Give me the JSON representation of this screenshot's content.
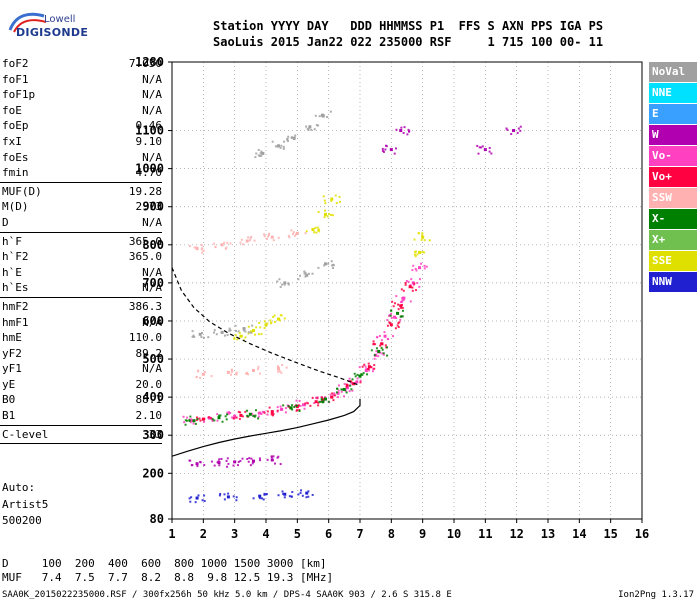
{
  "logo": {
    "word1": "Lowell",
    "word2": "DIGISONDE"
  },
  "header": {
    "line1": "Station YYYY DAY   DDD HHMMSS P1  FFS S AXN PPS IGA PS",
    "line2": "SaoLuis 2015 Jan22 022 235000 RSF     1 715 100 00- 11"
  },
  "params": [
    {
      "label": "foF2",
      "value": "7.050"
    },
    {
      "label": "foF1",
      "value": "N/A"
    },
    {
      "label": "foF1p",
      "value": "N/A"
    },
    {
      "label": "foE",
      "value": "N/A"
    },
    {
      "label": "foEp",
      "value": "0.46"
    },
    {
      "label": "fxI",
      "value": "9.10"
    },
    {
      "label": "foEs",
      "value": "N/A"
    },
    {
      "label": "fmin",
      "value": "4.70"
    },
    {
      "sep": true
    },
    {
      "label": "MUF(D)",
      "value": "19.28"
    },
    {
      "label": "M(D)",
      "value": "2.73"
    },
    {
      "label": "D",
      "value": "N/A"
    },
    {
      "sep": true
    },
    {
      "label": "h`F",
      "value": "365.0"
    },
    {
      "label": "h`F2",
      "value": "365.0"
    },
    {
      "label": "h`E",
      "value": "N/A"
    },
    {
      "label": "h`Es",
      "value": "N/A"
    },
    {
      "sep": true
    },
    {
      "label": "hmF2",
      "value": "386.3"
    },
    {
      "label": "hmF1",
      "value": "N/A"
    },
    {
      "label": "hmE",
      "value": "110.0"
    },
    {
      "label": "yF2",
      "value": "89.2"
    },
    {
      "label": "yF1",
      "value": "N/A"
    },
    {
      "label": "yE",
      "value": "20.0"
    },
    {
      "label": "B0",
      "value": "88.1"
    },
    {
      "label": "B1",
      "value": "2.10"
    },
    {
      "sep": true
    },
    {
      "label": "C-level",
      "value": "33"
    },
    {
      "sep": true
    }
  ],
  "artist": {
    "line1": "Auto:",
    "line2": "Artist5",
    "line3": "500200"
  },
  "legend": [
    {
      "label": "NoVal",
      "color": "#a0a0a0"
    },
    {
      "label": "NNE",
      "color": "#00e0ff"
    },
    {
      "label": "E",
      "color": "#3aa0ff"
    },
    {
      "label": "W",
      "color": "#b000b0"
    },
    {
      "label": "Vo-",
      "color": "#ff40c0"
    },
    {
      "label": "Vo+",
      "color": "#ff0040"
    },
    {
      "label": "SSW",
      "color": "#ffb0b0"
    },
    {
      "label": "X-",
      "color": "#008000"
    },
    {
      "label": "X+",
      "color": "#70c050"
    },
    {
      "label": "SSE",
      "color": "#e0e000"
    },
    {
      "label": "NNW",
      "color": "#2020d0"
    }
  ],
  "dmuf": {
    "line1": "D     100  200  400  600  800 1000 1500 3000 [km]",
    "line2": "MUF   7.4  7.5  7.7  8.2  8.8  9.8 12.5 19.3 [MHz]"
  },
  "footer": "SAA0K_2015022235000.RSF / 300fx256h 50 kHz 5.0 km / DPS-4 SAA0K 903 / 2.6 S 315.8 E",
  "version": "Ion2Png 1.3.17",
  "chart_data": {
    "type": "scatter",
    "title": "",
    "xlabel": "",
    "ylabel": "",
    "xlim": [
      1,
      16
    ],
    "ylim": [
      80,
      1280
    ],
    "x_ticks": [
      1,
      2,
      3,
      4,
      5,
      6,
      7,
      8,
      9,
      10,
      11,
      12,
      13,
      14,
      15,
      16
    ],
    "y_ticks": [
      80,
      200,
      300,
      400,
      500,
      600,
      700,
      800,
      900,
      1000,
      1100,
      1280
    ],
    "grid": true,
    "legend_position": "right",
    "series": [
      {
        "color": "#ff40c0",
        "points": [
          [
            1.6,
            340
          ],
          [
            2.2,
            345
          ],
          [
            3.0,
            350
          ],
          [
            3.8,
            358
          ],
          [
            4.5,
            368
          ],
          [
            5.2,
            380
          ],
          [
            5.8,
            392
          ],
          [
            6.3,
            410
          ],
          [
            6.6,
            425
          ],
          [
            6.9,
            440
          ],
          [
            7.2,
            470
          ],
          [
            7.5,
            510
          ],
          [
            7.8,
            560
          ],
          [
            8.1,
            610
          ],
          [
            8.4,
            660
          ],
          [
            8.7,
            700
          ],
          [
            8.9,
            740
          ]
        ]
      },
      {
        "color": "#ff0040",
        "points": [
          [
            2.0,
            342
          ],
          [
            3.2,
            352
          ],
          [
            4.2,
            362
          ],
          [
            5.0,
            375
          ],
          [
            5.6,
            388
          ],
          [
            6.1,
            400
          ],
          [
            6.8,
            435
          ],
          [
            7.3,
            480
          ],
          [
            7.7,
            540
          ],
          [
            8.0,
            590
          ],
          [
            8.3,
            640
          ],
          [
            8.6,
            690
          ]
        ]
      },
      {
        "color": "#008000",
        "points": [
          [
            1.7,
            338
          ],
          [
            2.5,
            346
          ],
          [
            3.5,
            355
          ],
          [
            4.8,
            372
          ],
          [
            5.9,
            395
          ],
          [
            6.5,
            420
          ],
          [
            7.0,
            455
          ],
          [
            7.6,
            520
          ],
          [
            8.2,
            620
          ]
        ]
      },
      {
        "color": "#e0e000",
        "points": [
          [
            3.2,
            560
          ],
          [
            3.6,
            575
          ],
          [
            4.0,
            590
          ],
          [
            4.4,
            605
          ],
          [
            5.5,
            840
          ],
          [
            5.9,
            880
          ],
          [
            6.1,
            920
          ],
          [
            8.9,
            780
          ],
          [
            9.0,
            820
          ]
        ]
      },
      {
        "color": "#b000b0",
        "points": [
          [
            1.8,
            225
          ],
          [
            2.5,
            228
          ],
          [
            3.0,
            230
          ],
          [
            3.6,
            232
          ],
          [
            4.2,
            235
          ],
          [
            8.0,
            1050
          ],
          [
            8.3,
            1100
          ],
          [
            11.0,
            1050
          ],
          [
            11.9,
            1100
          ]
        ]
      },
      {
        "color": "#2020d0",
        "points": [
          [
            1.8,
            135
          ],
          [
            2.8,
            138
          ],
          [
            3.8,
            140
          ],
          [
            4.6,
            145
          ],
          [
            5.3,
            148
          ]
        ]
      },
      {
        "color": "#ffb0b0",
        "points": [
          [
            2.0,
            460
          ],
          [
            2.8,
            465
          ],
          [
            3.6,
            470
          ],
          [
            4.4,
            475
          ],
          [
            1.8,
            790
          ],
          [
            2.6,
            800
          ],
          [
            3.4,
            810
          ],
          [
            4.2,
            820
          ],
          [
            5.0,
            830
          ]
        ]
      },
      {
        "color": "#a0a0a0",
        "points": [
          [
            1.9,
            565
          ],
          [
            2.6,
            570
          ],
          [
            3.3,
            580
          ],
          [
            4.6,
            700
          ],
          [
            5.3,
            720
          ],
          [
            5.9,
            750
          ],
          [
            3.9,
            1040
          ],
          [
            4.4,
            1060
          ],
          [
            4.9,
            1080
          ],
          [
            5.4,
            1110
          ],
          [
            5.8,
            1140
          ]
        ]
      }
    ],
    "lines": [
      {
        "style": "solid",
        "color": "#000000",
        "points": [
          [
            1.0,
            245
          ],
          [
            1.5,
            258
          ],
          [
            2.0,
            270
          ],
          [
            2.5,
            281
          ],
          [
            3.0,
            290
          ],
          [
            3.5,
            298
          ],
          [
            4.0,
            305
          ],
          [
            4.5,
            312
          ],
          [
            5.0,
            320
          ],
          [
            5.5,
            330
          ],
          [
            6.0,
            340
          ],
          [
            6.5,
            352
          ],
          [
            6.8,
            362
          ],
          [
            7.0,
            378
          ],
          [
            7.0,
            395
          ]
        ]
      },
      {
        "style": "dashed",
        "color": "#000000",
        "points": [
          [
            1.0,
            740
          ],
          [
            1.3,
            680
          ],
          [
            1.7,
            635
          ],
          [
            2.2,
            598
          ],
          [
            2.8,
            568
          ],
          [
            3.5,
            540
          ],
          [
            4.2,
            515
          ],
          [
            5.0,
            490
          ],
          [
            5.7,
            468
          ],
          [
            6.3,
            452
          ],
          [
            6.7,
            440
          ],
          [
            7.0,
            430
          ]
        ]
      }
    ]
  }
}
